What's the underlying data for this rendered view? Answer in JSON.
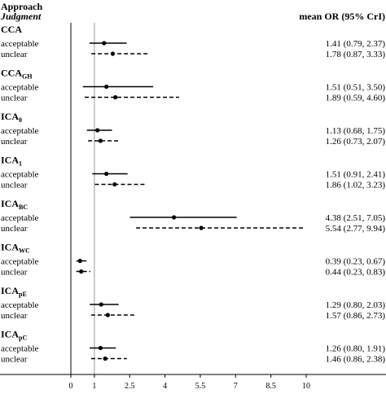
{
  "header": {
    "col1_title": "Approach",
    "col1_subtitle": "Judgment",
    "col2_title": "mean OR (95% CrI)"
  },
  "chart_data": {
    "type": "forest",
    "reference_line": 1,
    "xlim": [
      0,
      10
    ],
    "x_ticks": [
      "0",
      "1",
      "2.5",
      "4",
      "5.5",
      "7",
      "8.5",
      "10"
    ],
    "x_tick_values": [
      0,
      1,
      2.5,
      4,
      5.5,
      7,
      8.5,
      10
    ],
    "groups": [
      {
        "name": "CCA",
        "sub": "",
        "rows": [
          {
            "label": "acceptable",
            "mean": 1.41,
            "lo": 0.79,
            "hi": 2.37,
            "style": "solid",
            "text": "1.41 (0.79, 2.37)"
          },
          {
            "label": "unclear",
            "mean": 1.78,
            "lo": 0.87,
            "hi": 3.33,
            "style": "dashed",
            "text": "1.78 (0.87, 3.33)"
          }
        ]
      },
      {
        "name": "CCA",
        "sub": "GH",
        "rows": [
          {
            "label": "acceptable",
            "mean": 1.51,
            "lo": 0.51,
            "hi": 3.5,
            "style": "solid",
            "text": "1.51 (0.51, 3.50)"
          },
          {
            "label": "unclear",
            "mean": 1.89,
            "lo": 0.59,
            "hi": 4.6,
            "style": "dashed",
            "text": "1.89 (0.59, 4.60)"
          }
        ]
      },
      {
        "name": "ICA",
        "sub": "0",
        "rows": [
          {
            "label": "acceptable",
            "mean": 1.13,
            "lo": 0.68,
            "hi": 1.75,
            "style": "solid",
            "text": "1.13 (0.68, 1.75)"
          },
          {
            "label": "unclear",
            "mean": 1.26,
            "lo": 0.73,
            "hi": 2.07,
            "style": "dashed",
            "text": "1.26 (0.73, 2.07)"
          }
        ]
      },
      {
        "name": "ICA",
        "sub": "1",
        "rows": [
          {
            "label": "acceptable",
            "mean": 1.51,
            "lo": 0.91,
            "hi": 2.41,
            "style": "solid",
            "text": "1.51 (0.91, 2.41)"
          },
          {
            "label": "unclear",
            "mean": 1.86,
            "lo": 1.02,
            "hi": 3.23,
            "style": "dashed",
            "text": "1.86 (1.02, 3.23)"
          }
        ]
      },
      {
        "name": "ICA",
        "sub": "BC",
        "rows": [
          {
            "label": "acceptable",
            "mean": 4.38,
            "lo": 2.51,
            "hi": 7.05,
            "style": "solid",
            "text": "4.38 (2.51, 7.05)"
          },
          {
            "label": "unclear",
            "mean": 5.54,
            "lo": 2.77,
            "hi": 9.94,
            "style": "dashed",
            "text": "5.54 (2.77, 9.94)"
          }
        ]
      },
      {
        "name": "ICA",
        "sub": "WC",
        "rows": [
          {
            "label": "acceptable",
            "mean": 0.39,
            "lo": 0.23,
            "hi": 0.67,
            "style": "solid",
            "text": "0.39 (0.23, 0.67)"
          },
          {
            "label": "unclear",
            "mean": 0.44,
            "lo": 0.23,
            "hi": 0.83,
            "style": "dashed",
            "text": "0.44 (0.23, 0.83)"
          }
        ]
      },
      {
        "name": "ICA",
        "sub": "pE",
        "rows": [
          {
            "label": "acceptable",
            "mean": 1.29,
            "lo": 0.8,
            "hi": 2.03,
            "style": "solid",
            "text": "1.29 (0.80, 2.03)"
          },
          {
            "label": "unclear",
            "mean": 1.57,
            "lo": 0.86,
            "hi": 2.73,
            "style": "dashed",
            "text": "1.57 (0.86, 2.73)"
          }
        ]
      },
      {
        "name": "ICA",
        "sub": "pC",
        "rows": [
          {
            "label": "acceptable",
            "mean": 1.26,
            "lo": 0.8,
            "hi": 1.91,
            "style": "solid",
            "text": "1.26 (0.80, 1.91)"
          },
          {
            "label": "unclear",
            "mean": 1.46,
            "lo": 0.86,
            "hi": 2.38,
            "style": "dashed",
            "text": "1.46 (0.86, 2.38)"
          }
        ]
      }
    ]
  }
}
